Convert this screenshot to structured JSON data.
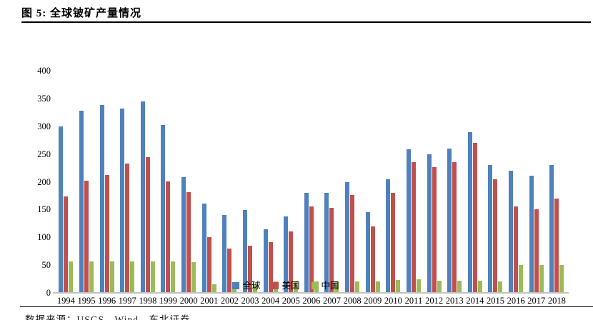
{
  "header": {
    "title": "图 5: 全球铍矿产量情况"
  },
  "chart_data": {
    "type": "bar",
    "title": "全球铍矿产量情况",
    "categories": [
      "1994",
      "1995",
      "1996",
      "1997",
      "1998",
      "1999",
      "2000",
      "2001",
      "2002",
      "2003",
      "2004",
      "2005",
      "2006",
      "2007",
      "2008",
      "2009",
      "2010",
      "2011",
      "2012",
      "2013",
      "2014",
      "2015",
      "2016",
      "2017",
      "2018"
    ],
    "series": [
      {
        "name": "全球",
        "color": "#4F81BD",
        "values": [
          300,
          328,
          338,
          332,
          345,
          302,
          209,
          161,
          140,
          149,
          114,
          138,
          180,
          180,
          200,
          145,
          205,
          259,
          250,
          260,
          290,
          230,
          220,
          211,
          230
        ]
      },
      {
        "name": "美国",
        "color": "#C0504D",
        "values": [
          174,
          202,
          212,
          233,
          245,
          201,
          181,
          100,
          80,
          85,
          91,
          110,
          156,
          153,
          176,
          120,
          180,
          236,
          226,
          236,
          270,
          205,
          156,
          151,
          170
        ]
      },
      {
        "name": "中国",
        "color": "#9BBB59",
        "values": [
          56,
          56,
          56,
          56,
          56,
          56,
          55,
          16,
          16,
          16,
          20,
          20,
          21,
          21,
          21,
          21,
          23,
          24,
          22,
          22,
          22,
          20,
          50,
          50,
          50
        ]
      }
    ],
    "xlabel": "",
    "ylabel": "",
    "ylim": [
      0,
      400
    ],
    "ytick_step": 50,
    "grid": false,
    "legend_position": "bottom"
  },
  "footer": {
    "source": "数据来源：USGS，Wind，东北证券"
  }
}
